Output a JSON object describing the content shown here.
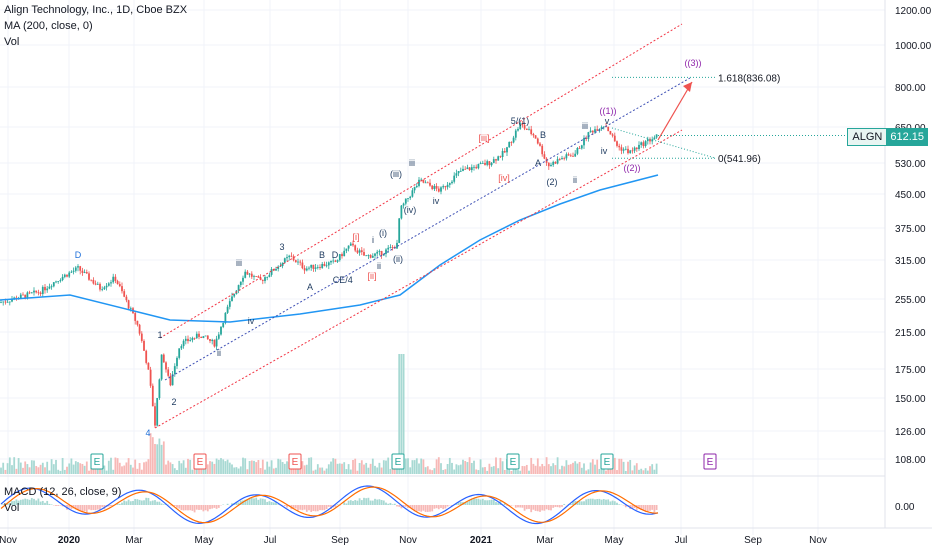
{
  "header": {
    "title": "Align Technology, Inc., 1D, Cboe BZX",
    "ma": "MA (200, close, 0)",
    "vol": "Vol",
    "macd": "MACD (12, 26, close, 9)",
    "vol2": "Vol"
  },
  "ticker": {
    "symbol": "ALGN",
    "price": "612.15"
  },
  "colors": {
    "up": "#26a69a",
    "down": "#ef5350",
    "ma": "#2196f3",
    "channel": "#f23645",
    "wave_blue": "#1e3a5f",
    "wave_red": "#ef5350"
  },
  "chart_data": {
    "type": "candlestick",
    "y_scale": "log",
    "y_ticks": [
      "1200.00",
      "1000.00",
      "800.00",
      "650.00",
      "530.00",
      "450.00",
      "375.00",
      "315.00",
      "255.00",
      "215.00",
      "175.00",
      "150.00",
      "126.00",
      "108.00"
    ],
    "x_ticks": [
      "Nov",
      "2020",
      "Mar",
      "May",
      "Jul",
      "Sep",
      "Nov",
      "2021",
      "Mar",
      "May",
      "Jul",
      "Sep",
      "Nov"
    ],
    "macd_ticks": [
      "0.00"
    ],
    "fib_levels": [
      {
        "label": "1.618(836.08)",
        "value": 836.08
      },
      {
        "label": "0(541.96)",
        "value": 541.96
      }
    ],
    "last_price": 612.15,
    "wave_labels": [
      {
        "t": "D",
        "c": "blue"
      },
      {
        "t": "4",
        "c": "blue"
      },
      {
        "t": "1",
        "c": "dark"
      },
      {
        "t": "2",
        "c": "dark"
      },
      {
        "t": "ii",
        "c": "dark"
      },
      {
        "t": "iii",
        "c": "dark"
      },
      {
        "t": "iv",
        "c": "dark"
      },
      {
        "t": "3",
        "c": "dark"
      },
      {
        "t": "A",
        "c": "dark"
      },
      {
        "t": "B",
        "c": "dark"
      },
      {
        "t": "C",
        "c": "dark"
      },
      {
        "t": "D",
        "c": "dark"
      },
      {
        "t": "E/4",
        "c": "dark"
      },
      {
        "t": "[i]",
        "c": "red"
      },
      {
        "t": "[ii]",
        "c": "red"
      },
      {
        "t": "i",
        "c": "dark"
      },
      {
        "t": "ii",
        "c": "dark"
      },
      {
        "t": "(i)",
        "c": "dark"
      },
      {
        "t": "(ii)",
        "c": "dark"
      },
      {
        "t": "(iii)",
        "c": "dark"
      },
      {
        "t": "iii",
        "c": "dark"
      },
      {
        "t": "(iv)",
        "c": "dark"
      },
      {
        "t": "iv",
        "c": "dark"
      },
      {
        "t": "[iii]",
        "c": "red"
      },
      {
        "t": "[iv]",
        "c": "red"
      },
      {
        "t": "5/(1)",
        "c": "dark"
      },
      {
        "t": "A",
        "c": "dark"
      },
      {
        "t": "B",
        "c": "dark"
      },
      {
        "t": "(2)",
        "c": "dark"
      },
      {
        "t": "ii",
        "c": "dark"
      },
      {
        "t": "iii",
        "c": "dark"
      },
      {
        "t": "((1))",
        "c": "purple"
      },
      {
        "t": "v",
        "c": "dark"
      },
      {
        "t": "iv",
        "c": "dark"
      },
      {
        "t": "((2))",
        "c": "purple"
      },
      {
        "t": "((3))",
        "c": "purple"
      }
    ],
    "earnings_markers": [
      {
        "t": "E",
        "c": "green"
      },
      {
        "t": "E",
        "c": "red"
      },
      {
        "t": "E",
        "c": "red"
      },
      {
        "t": "E",
        "c": "green"
      },
      {
        "t": "E",
        "c": "green"
      },
      {
        "t": "E",
        "c": "green"
      },
      {
        "t": "E",
        "c": "purple"
      }
    ]
  }
}
